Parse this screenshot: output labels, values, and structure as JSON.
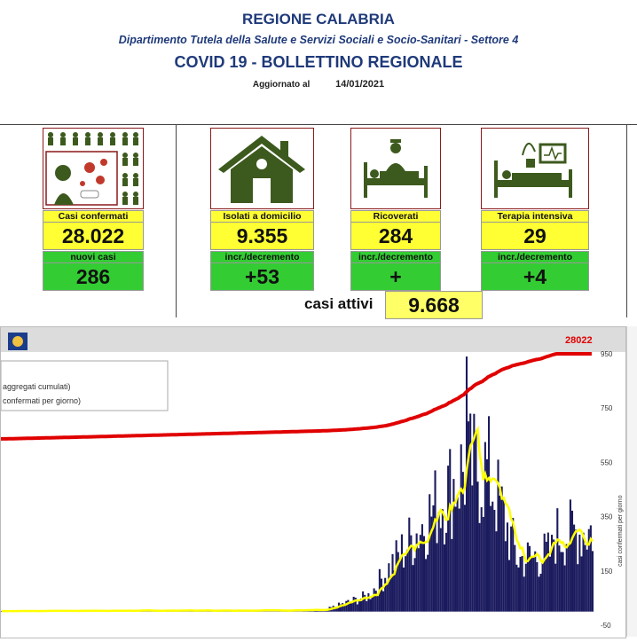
{
  "header": {
    "region": "REGIONE CALABRIA",
    "department": "Dipartimento Tutela della Salute e Servizi Sociali e Socio-Sanitari - Settore 4",
    "title": "COVID 19 - BOLLETTINO REGIONALE",
    "updated_label": "Aggiornato al",
    "updated_date": "14/01/2021"
  },
  "kpis": [
    {
      "label": "Casi confermati",
      "value": "28.022",
      "sub_label": "nuovi casi",
      "sub_value": "286",
      "icon": "infected-person-icon"
    },
    {
      "label": "Isolati a domicilio",
      "value": "9.355",
      "sub_label": "incr./decremento",
      "sub_value": "+53",
      "icon": "house-icon"
    },
    {
      "label": "Ricoverati",
      "value": "284",
      "sub_label": "incr./decremento",
      "sub_value": "+",
      "icon": "hospital-bed-icon"
    },
    {
      "label": "Terapia intensiva",
      "value": "29",
      "sub_label": "incr./decremento",
      "sub_value": "+4",
      "icon": "icu-bed-icon"
    }
  ],
  "active": {
    "label": "casi attivi",
    "value": "9.668"
  },
  "chart_data": {
    "type": "bar",
    "legend": [
      "aggregati cumulati)",
      "confermati per giorno)"
    ],
    "cumulative_label": "28022",
    "right_axis_label": "casi confermati per giorno",
    "right_ticks": [
      "950",
      "750",
      "550",
      "350",
      "150",
      "-50"
    ],
    "right_ylim": [
      -50,
      950
    ],
    "cumulative_last": 28022,
    "colors": {
      "bars": "#1a1a5e",
      "average": "#ffff00",
      "cumulative": "#e00000"
    }
  }
}
